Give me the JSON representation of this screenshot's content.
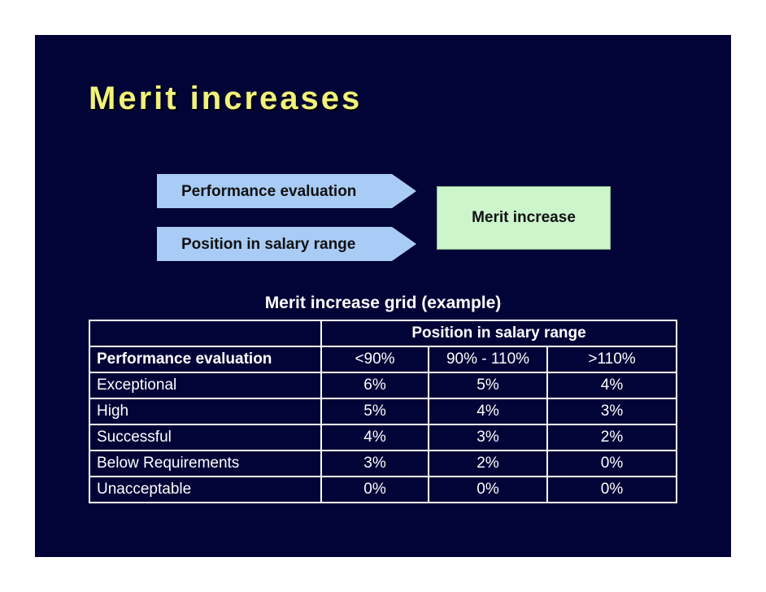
{
  "slide": {
    "title": "Merit increases",
    "diagram": {
      "inputs": [
        "Performance evaluation",
        "Position in salary range"
      ],
      "output": "Merit increase"
    },
    "grid_caption": "Merit increase grid (example)",
    "table": {
      "super_header": "Position in salary range",
      "row_header_label": "Performance evaluation",
      "columns": [
        "<90%",
        "90% - 110%",
        ">110%"
      ],
      "rows": [
        {
          "label": "Exceptional",
          "values": [
            "6%",
            "5%",
            "4%"
          ]
        },
        {
          "label": "High",
          "values": [
            "5%",
            "4%",
            "3%"
          ]
        },
        {
          "label": "Successful",
          "values": [
            "4%",
            "3%",
            "2%"
          ]
        },
        {
          "label": "Below Requirements",
          "values": [
            "3%",
            "2%",
            "0%"
          ]
        },
        {
          "label": "Unacceptable",
          "values": [
            "0%",
            "0%",
            "0%"
          ]
        }
      ]
    },
    "colors": {
      "background": "#020437",
      "title": "#f2f27a",
      "input_arrow": "#a8ccf5",
      "output_box": "#ccf5cc",
      "table_text": "#ffffff"
    }
  }
}
